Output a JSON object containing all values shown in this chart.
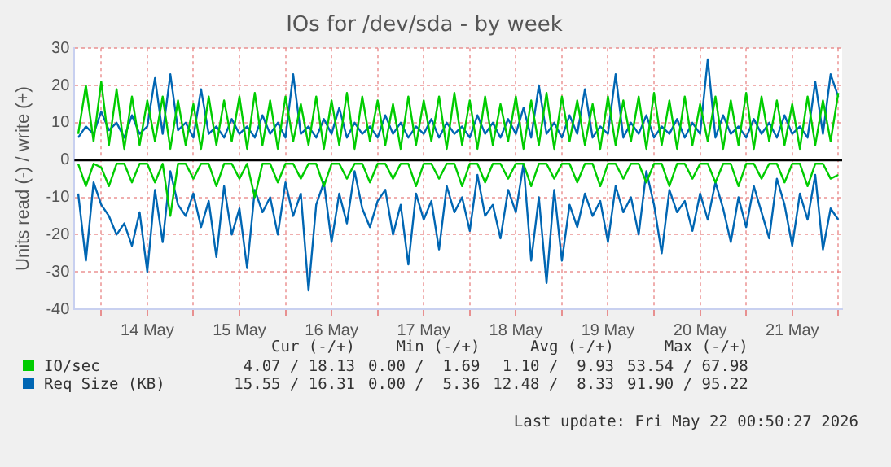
{
  "chart_data": {
    "type": "line",
    "title": "IOs for /dev/sda - by week",
    "ylabel": "Units read (-) / write (+)",
    "x": [
      "2026-05-13T18:00",
      "2026-05-13T20:00",
      "2026-05-13T22:00",
      "2026-05-14T00:00",
      "2026-05-14T02:00",
      "2026-05-14T04:00",
      "2026-05-14T06:00",
      "2026-05-14T08:00",
      "2026-05-14T10:00",
      "2026-05-14T12:00",
      "2026-05-14T14:00",
      "2026-05-14T16:00",
      "2026-05-14T18:00",
      "2026-05-14T20:00",
      "2026-05-14T22:00",
      "2026-05-15T00:00",
      "2026-05-15T02:00",
      "2026-05-15T04:00",
      "2026-05-15T06:00",
      "2026-05-15T08:00",
      "2026-05-15T10:00",
      "2026-05-15T12:00",
      "2026-05-15T14:00",
      "2026-05-15T16:00",
      "2026-05-15T18:00",
      "2026-05-15T20:00",
      "2026-05-15T22:00",
      "2026-05-16T00:00",
      "2026-05-16T02:00",
      "2026-05-16T04:00",
      "2026-05-16T06:00",
      "2026-05-16T08:00",
      "2026-05-16T10:00",
      "2026-05-16T12:00",
      "2026-05-16T14:00",
      "2026-05-16T16:00",
      "2026-05-16T18:00",
      "2026-05-16T20:00",
      "2026-05-16T22:00",
      "2026-05-17T00:00",
      "2026-05-17T02:00",
      "2026-05-17T04:00",
      "2026-05-17T06:00",
      "2026-05-17T08:00",
      "2026-05-17T10:00",
      "2026-05-17T12:00",
      "2026-05-17T14:00",
      "2026-05-17T16:00",
      "2026-05-17T18:00",
      "2026-05-17T20:00",
      "2026-05-17T22:00",
      "2026-05-18T00:00",
      "2026-05-18T02:00",
      "2026-05-18T04:00",
      "2026-05-18T06:00",
      "2026-05-18T08:00",
      "2026-05-18T10:00",
      "2026-05-18T12:00",
      "2026-05-18T14:00",
      "2026-05-18T16:00",
      "2026-05-18T18:00",
      "2026-05-18T20:00",
      "2026-05-18T22:00",
      "2026-05-19T00:00",
      "2026-05-19T02:00",
      "2026-05-19T04:00",
      "2026-05-19T06:00",
      "2026-05-19T08:00",
      "2026-05-19T10:00",
      "2026-05-19T12:00",
      "2026-05-19T14:00",
      "2026-05-19T16:00",
      "2026-05-19T18:00",
      "2026-05-19T20:00",
      "2026-05-19T22:00",
      "2026-05-20T00:00",
      "2026-05-20T02:00",
      "2026-05-20T04:00",
      "2026-05-20T06:00",
      "2026-05-20T08:00",
      "2026-05-20T10:00",
      "2026-05-20T12:00",
      "2026-05-20T14:00",
      "2026-05-20T16:00",
      "2026-05-20T18:00",
      "2026-05-20T20:00",
      "2026-05-20T22:00",
      "2026-05-21T00:00",
      "2026-05-21T02:00",
      "2026-05-21T04:00",
      "2026-05-21T06:00",
      "2026-05-21T08:00",
      "2026-05-21T10:00",
      "2026-05-21T12:00",
      "2026-05-21T14:00",
      "2026-05-21T16:00",
      "2026-05-21T18:00",
      "2026-05-21T20:00",
      "2026-05-21T22:00",
      "2026-05-22T00:00"
    ],
    "series": [
      {
        "name": "IO/sec",
        "color": "#00cc00",
        "values": [
          7,
          20,
          5,
          21,
          4,
          19,
          3,
          17,
          4,
          16,
          5,
          17,
          3,
          16,
          4,
          15,
          3,
          17,
          4,
          16,
          5,
          17,
          3,
          18,
          4,
          16,
          3,
          17,
          5,
          15,
          4,
          17,
          3,
          16,
          4,
          18,
          3,
          17,
          5,
          16,
          4,
          15,
          3,
          17,
          4,
          16,
          5,
          17,
          3,
          18,
          4,
          16,
          3,
          17,
          4,
          15,
          5,
          17,
          3,
          16,
          4,
          18,
          3,
          17,
          5,
          16,
          4,
          15,
          3,
          17,
          4,
          16,
          5,
          17,
          3,
          18,
          4,
          16,
          3,
          17,
          4,
          15,
          5,
          17,
          3,
          16,
          4,
          18,
          3,
          17,
          5,
          16,
          4,
          15,
          3,
          17,
          4,
          16,
          5,
          18
        ]
      },
      {
        "color": "#00cc00",
        "values": [
          -1,
          -7,
          -1,
          -2,
          -7,
          -1,
          -1,
          -6,
          -1,
          -1,
          -6,
          -1,
          -15,
          -1,
          -1,
          -5,
          -1,
          -1,
          -7,
          -1,
          -1,
          -5,
          -1,
          -10,
          -1,
          -1,
          -6,
          -1,
          -1,
          -5,
          -1,
          -1,
          -7,
          -1,
          -1,
          -5,
          -1,
          -1,
          -6,
          -1,
          -1,
          -5,
          -1,
          -1,
          -7,
          -1,
          -1,
          -5,
          -1,
          -1,
          -7,
          -1,
          -1,
          -6,
          -1,
          -1,
          -5,
          -1,
          -1,
          -7,
          -1,
          -1,
          -5,
          -1,
          -1,
          -6,
          -1,
          -1,
          -7,
          -1,
          -1,
          -5,
          -1,
          -1,
          -6,
          -1,
          -1,
          -7,
          -1,
          -1,
          -5,
          -1,
          -1,
          -6,
          -1,
          -1,
          -7,
          -1,
          -1,
          -5,
          -1,
          -1,
          -6,
          -1,
          -1,
          -7,
          -1,
          -1,
          -5,
          -4
        ]
      },
      {
        "name": "Req Size (KB)",
        "color": "#0066b3",
        "values": [
          6,
          9,
          7,
          13,
          8,
          10,
          6,
          12,
          7,
          9,
          22,
          7,
          23,
          8,
          10,
          6,
          19,
          7,
          9,
          6,
          11,
          7,
          9,
          6,
          12,
          7,
          10,
          6,
          23,
          7,
          9,
          6,
          11,
          7,
          14,
          6,
          10,
          7,
          9,
          6,
          12,
          7,
          10,
          6,
          9,
          7,
          11,
          6,
          10,
          7,
          9,
          6,
          12,
          7,
          10,
          6,
          11,
          7,
          14,
          6,
          20,
          7,
          10,
          6,
          12,
          7,
          19,
          6,
          9,
          7,
          23,
          6,
          10,
          7,
          12,
          6,
          9,
          7,
          11,
          6,
          10,
          7,
          27,
          6,
          12,
          7,
          9,
          6,
          11,
          7,
          10,
          6,
          12,
          7,
          9,
          6,
          21,
          7,
          23,
          17
        ]
      },
      {
        "color": "#0066b3",
        "values": [
          -9,
          -27,
          -6,
          -12,
          -15,
          -20,
          -17,
          -23,
          -14,
          -30,
          -8,
          -22,
          -3,
          -12,
          -15,
          -9,
          -18,
          -11,
          -26,
          -7,
          -20,
          -13,
          -29,
          -8,
          -14,
          -10,
          -20,
          -6,
          -15,
          -9,
          -35,
          -12,
          -6,
          -22,
          -9,
          -17,
          -3,
          -13,
          -18,
          -11,
          -8,
          -20,
          -12,
          -28,
          -9,
          -16,
          -11,
          -24,
          -7,
          -14,
          -10,
          -19,
          -4,
          -15,
          -12,
          -21,
          -8,
          -14,
          -1,
          -27,
          -10,
          -33,
          -8,
          -27,
          -12,
          -18,
          -9,
          -15,
          -11,
          -22,
          -7,
          -14,
          -10,
          -20,
          -3,
          -12,
          -25,
          -8,
          -14,
          -11,
          -19,
          -9,
          -16,
          -6,
          -13,
          -22,
          -10,
          -18,
          -7,
          -14,
          -21,
          -5,
          -12,
          -23,
          -9,
          -16,
          -4,
          -24,
          -13,
          -16
        ]
      }
    ],
    "xlim": [
      "2026-05-13T17:00",
      "2026-05-22T01:00"
    ],
    "xticks": [
      {
        "value": "2026-05-14T00:00",
        "label": null
      },
      {
        "value": "2026-05-14T12:00",
        "label": "14 May"
      },
      {
        "value": "2026-05-15T00:00",
        "label": null
      },
      {
        "value": "2026-05-15T12:00",
        "label": "15 May"
      },
      {
        "value": "2026-05-16T00:00",
        "label": null
      },
      {
        "value": "2026-05-16T12:00",
        "label": "16 May"
      },
      {
        "value": "2026-05-17T00:00",
        "label": null
      },
      {
        "value": "2026-05-17T12:00",
        "label": "17 May"
      },
      {
        "value": "2026-05-18T00:00",
        "label": null
      },
      {
        "value": "2026-05-18T12:00",
        "label": "18 May"
      },
      {
        "value": "2026-05-19T00:00",
        "label": null
      },
      {
        "value": "2026-05-19T12:00",
        "label": "19 May"
      },
      {
        "value": "2026-05-20T00:00",
        "label": null
      },
      {
        "value": "2026-05-20T12:00",
        "label": "20 May"
      },
      {
        "value": "2026-05-21T00:00",
        "label": null
      },
      {
        "value": "2026-05-21T12:00",
        "label": "21 May"
      },
      {
        "value": "2026-05-22T00:00",
        "label": null
      }
    ],
    "ylim": [
      -40,
      30
    ],
    "yticks": [
      -40,
      -30,
      -20,
      -10,
      0,
      10,
      20,
      30
    ],
    "ref_lines": [
      {
        "axis": "y",
        "value": 0,
        "color": "#000000"
      }
    ],
    "grid": true,
    "legend": "bottom",
    "marker": "none",
    "line_style": "solid",
    "annotations": [
      "Cur (-/+)",
      "Min (-/+)",
      "Avg (-/+)",
      "Max (-/+)",
      "4.07 / 18.13",
      "0.00 /  1.69",
      "1.10 /  9.93",
      "53.54 / 67.98",
      "15.55 / 16.31",
      "0.00 /  5.36",
      "12.48 /  8.33",
      "91.90 / 95.22",
      "Last update: Fri May 22 00:50:27 2026"
    ]
  }
}
